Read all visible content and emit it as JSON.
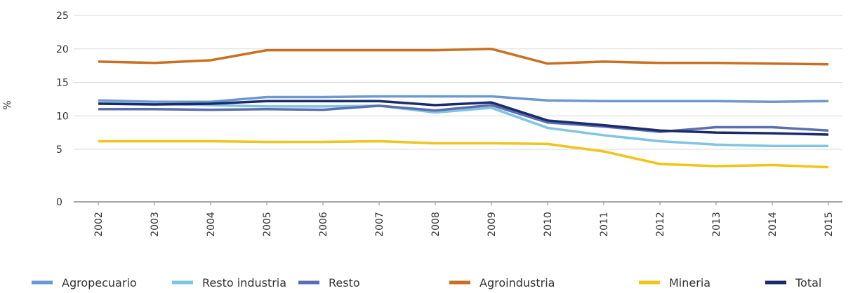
{
  "chart_data": {
    "type": "line",
    "y_label": "%",
    "x": [
      "2002",
      "2003",
      "2004",
      "2005",
      "2006",
      "2007",
      "2008",
      "2009",
      "2010",
      "2011",
      "2012",
      "2013",
      "2014",
      "2015"
    ],
    "series": [
      {
        "name": "Agropecuario",
        "color": "#6d97cf",
        "values": [
          12.3,
          12.1,
          12.1,
          12.8,
          12.8,
          12.9,
          12.9,
          12.9,
          12.3,
          12.2,
          12.2,
          12.2,
          12.1,
          12.2
        ]
      },
      {
        "name": "Resto industria",
        "color": "#7fc4e3",
        "values": [
          12.0,
          11.8,
          11.6,
          11.4,
          11.4,
          11.5,
          10.5,
          11.2,
          8.2,
          7.1,
          6.2,
          5.7,
          5.5,
          5.5
        ]
      },
      {
        "name": "Resto",
        "color": "#5b6fb0",
        "values": [
          11.0,
          11.0,
          10.9,
          11.0,
          10.9,
          11.5,
          10.8,
          11.6,
          9.0,
          8.4,
          7.6,
          8.3,
          8.3,
          7.8
        ]
      },
      {
        "name": "Agroindustria",
        "color": "#c8701f",
        "values": [
          18.1,
          17.9,
          18.3,
          19.8,
          19.8,
          19.8,
          19.8,
          20.0,
          17.8,
          18.1,
          17.9,
          17.9,
          17.8,
          17.7
        ]
      },
      {
        "name": "Mineria",
        "color": "#f0c419",
        "values": [
          6.2,
          6.2,
          6.2,
          6.1,
          6.1,
          6.2,
          5.9,
          5.9,
          5.8,
          4.8,
          3.6,
          3.4,
          3.5,
          3.3
        ]
      },
      {
        "name": "Total",
        "color": "#1b2a6b",
        "values": [
          11.8,
          11.7,
          11.8,
          12.2,
          12.2,
          12.2,
          11.6,
          12.0,
          9.3,
          8.6,
          7.8,
          7.5,
          7.4,
          7.2
        ]
      }
    ],
    "ylim": [
      0,
      25
    ],
    "yticks": [
      0,
      5,
      10,
      15,
      20,
      25
    ],
    "grid": true
  }
}
